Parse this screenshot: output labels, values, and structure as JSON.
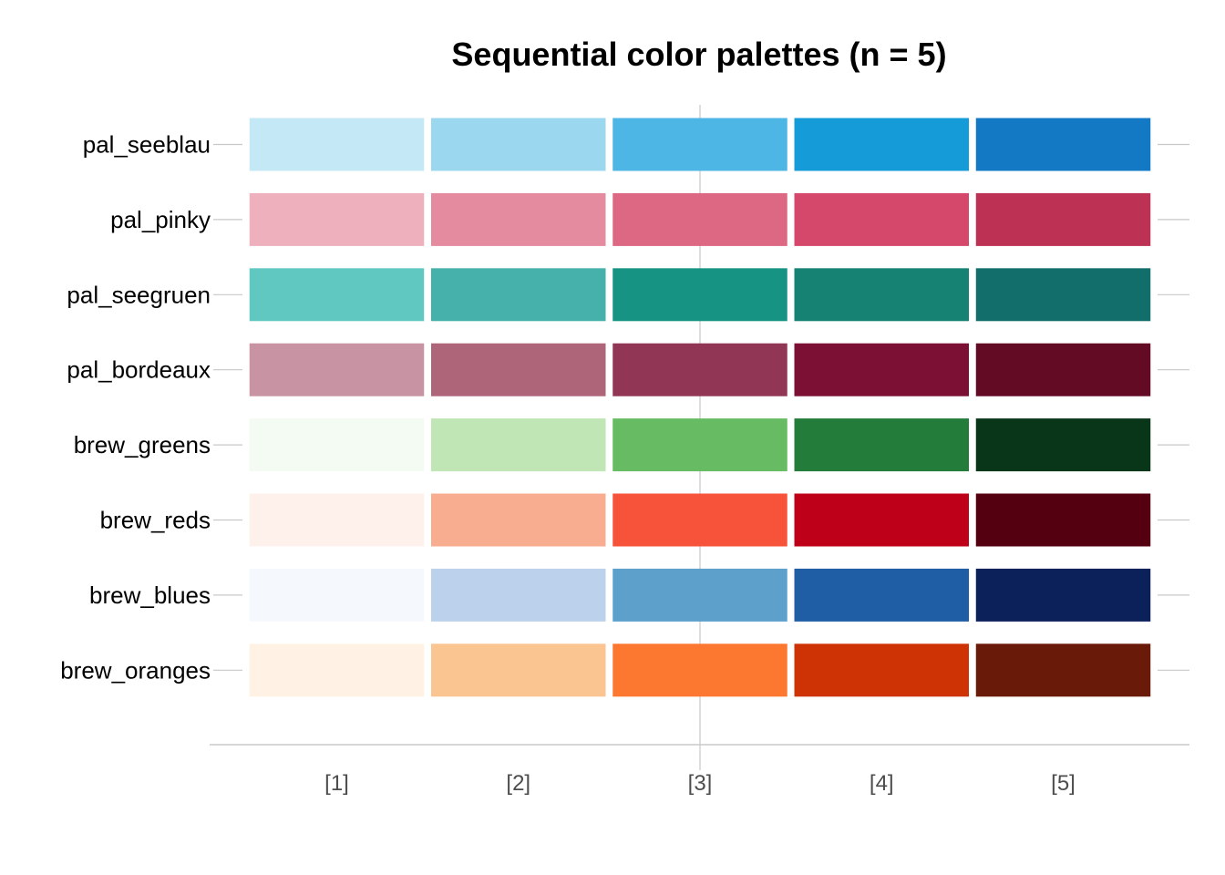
{
  "chart_data": {
    "type": "heatmap",
    "title": "Sequential color palettes (n = 5)",
    "xlabel": "",
    "ylabel": "",
    "categories": [
      "[1]",
      "[2]",
      "[3]",
      "[4]",
      "[5]"
    ],
    "series": [
      {
        "name": "pal_seeblau",
        "values": [
          "#C5E8F6",
          "#9BD8F0",
          "#4DB6E4",
          "#149BD8",
          "#1379C4"
        ]
      },
      {
        "name": "pal_pinky",
        "values": [
          "#EFB0BE",
          "#E58BA0",
          "#DD6884",
          "#D6486B",
          "#BD3254"
        ]
      },
      {
        "name": "pal_seegruen",
        "values": [
          "#61C8C1",
          "#46B1AA",
          "#179383",
          "#168274",
          "#126E6A"
        ]
      },
      {
        "name": "pal_bordeaux",
        "values": [
          "#C893A2",
          "#AE6479",
          "#913654",
          "#7B1034",
          "#630B25"
        ]
      },
      {
        "name": "brew_greens",
        "values": [
          "#F4FBF2",
          "#BFE6B4",
          "#67BB62",
          "#237C39",
          "#093619"
        ]
      },
      {
        "name": "brew_reds",
        "values": [
          "#FEF1EC",
          "#F9AD90",
          "#F7533B",
          "#BF0019",
          "#540010"
        ]
      },
      {
        "name": "brew_blues",
        "values": [
          "#F5F9FD",
          "#BCD2EC",
          "#5CA0CB",
          "#1F5DA5",
          "#0C215A"
        ]
      },
      {
        "name": "brew_oranges",
        "values": [
          "#FFF2E5",
          "#FBC592",
          "#FC7830",
          "#CE3305",
          "#6A1A09"
        ]
      }
    ]
  }
}
